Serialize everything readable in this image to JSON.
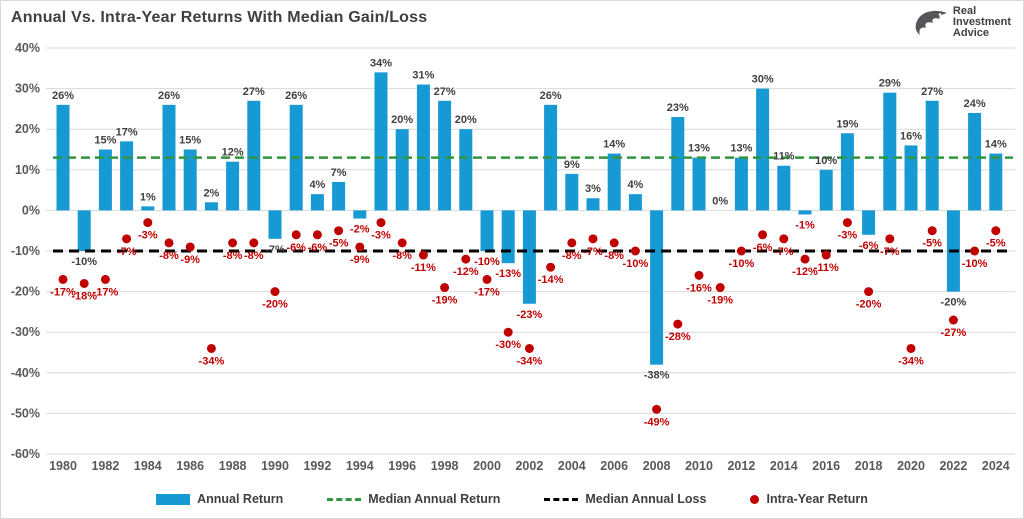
{
  "header": {
    "title": "Annual Vs. Intra-Year Returns With Median Gain/Loss"
  },
  "logo": {
    "line1": "Real",
    "line2": "Investment",
    "line3": "Advice"
  },
  "legend": {
    "annual_return": "Annual Return",
    "median_annual_return": "Median Annual Return",
    "median_annual_loss": "Median Annual Loss",
    "intra_year_return": "Intra-Year Return"
  },
  "colors": {
    "bar_blue": "#1799d4",
    "dot_red": "#c00000",
    "median_gain_green": "#31953f",
    "median_loss_black": "#000000",
    "grid": "#d9d9d9",
    "axis_text": "#595959",
    "label_dark": "#404040",
    "logo_gray": "#54565a"
  },
  "chart_data": {
    "type": "bar",
    "title": "Annual Vs. Intra-Year Returns With Median Gain/Loss",
    "x": [
      1980,
      1981,
      1982,
      1983,
      1984,
      1985,
      1986,
      1987,
      1988,
      1989,
      1990,
      1991,
      1992,
      1993,
      1994,
      1995,
      1996,
      1997,
      1998,
      1999,
      2000,
      2001,
      2002,
      2003,
      2004,
      2005,
      2006,
      2007,
      2008,
      2009,
      2010,
      2011,
      2012,
      2013,
      2014,
      2015,
      2016,
      2017,
      2018,
      2019,
      2020,
      2021,
      2022,
      2023,
      2024
    ],
    "series": [
      {
        "name": "Annual Return",
        "type": "bar",
        "values": [
          26,
          -10,
          15,
          17,
          1,
          26,
          15,
          2,
          12,
          27,
          -7,
          26,
          4,
          7,
          -2,
          34,
          20,
          31,
          27,
          20,
          -10,
          -13,
          -23,
          26,
          9,
          3,
          14,
          4,
          -38,
          23,
          13,
          0,
          13,
          30,
          11,
          -1,
          10,
          19,
          -6,
          29,
          16,
          27,
          -20,
          24,
          14
        ]
      },
      {
        "name": "Intra-Year Return",
        "type": "scatter",
        "values": [
          -17,
          -18,
          -17,
          -7,
          -3,
          -8,
          -9,
          -34,
          -8,
          -8,
          -20,
          -6,
          -6,
          -5,
          -9,
          -3,
          -8,
          -11,
          -19,
          -12,
          -17,
          -30,
          -34,
          -14,
          -8,
          -7,
          -8,
          -10,
          -49,
          -28,
          -16,
          -19,
          -10,
          -6,
          -7,
          -12,
          -11,
          -3,
          -20,
          -7,
          -34,
          -5,
          -27,
          -10,
          -5
        ]
      },
      {
        "name": "Median Annual Return",
        "type": "hline",
        "value": 13
      },
      {
        "name": "Median Annual Loss",
        "type": "hline",
        "value": -10
      }
    ],
    "red_bar_label_years": [
      1994,
      2000,
      2001,
      2002,
      2015,
      2018
    ],
    "ylim": [
      -60,
      40
    ],
    "yticks": [
      40,
      30,
      20,
      10,
      0,
      -10,
      -20,
      -30,
      -40,
      -50,
      -60
    ],
    "xticks": [
      1980,
      1982,
      1984,
      1986,
      1988,
      1990,
      1992,
      1994,
      1996,
      1998,
      2000,
      2002,
      2004,
      2006,
      2008,
      2010,
      2012,
      2014,
      2016,
      2018,
      2020,
      2022,
      2024
    ],
    "xlabel": "",
    "ylabel": "",
    "grid": "horizontal",
    "legend_position": "bottom"
  }
}
